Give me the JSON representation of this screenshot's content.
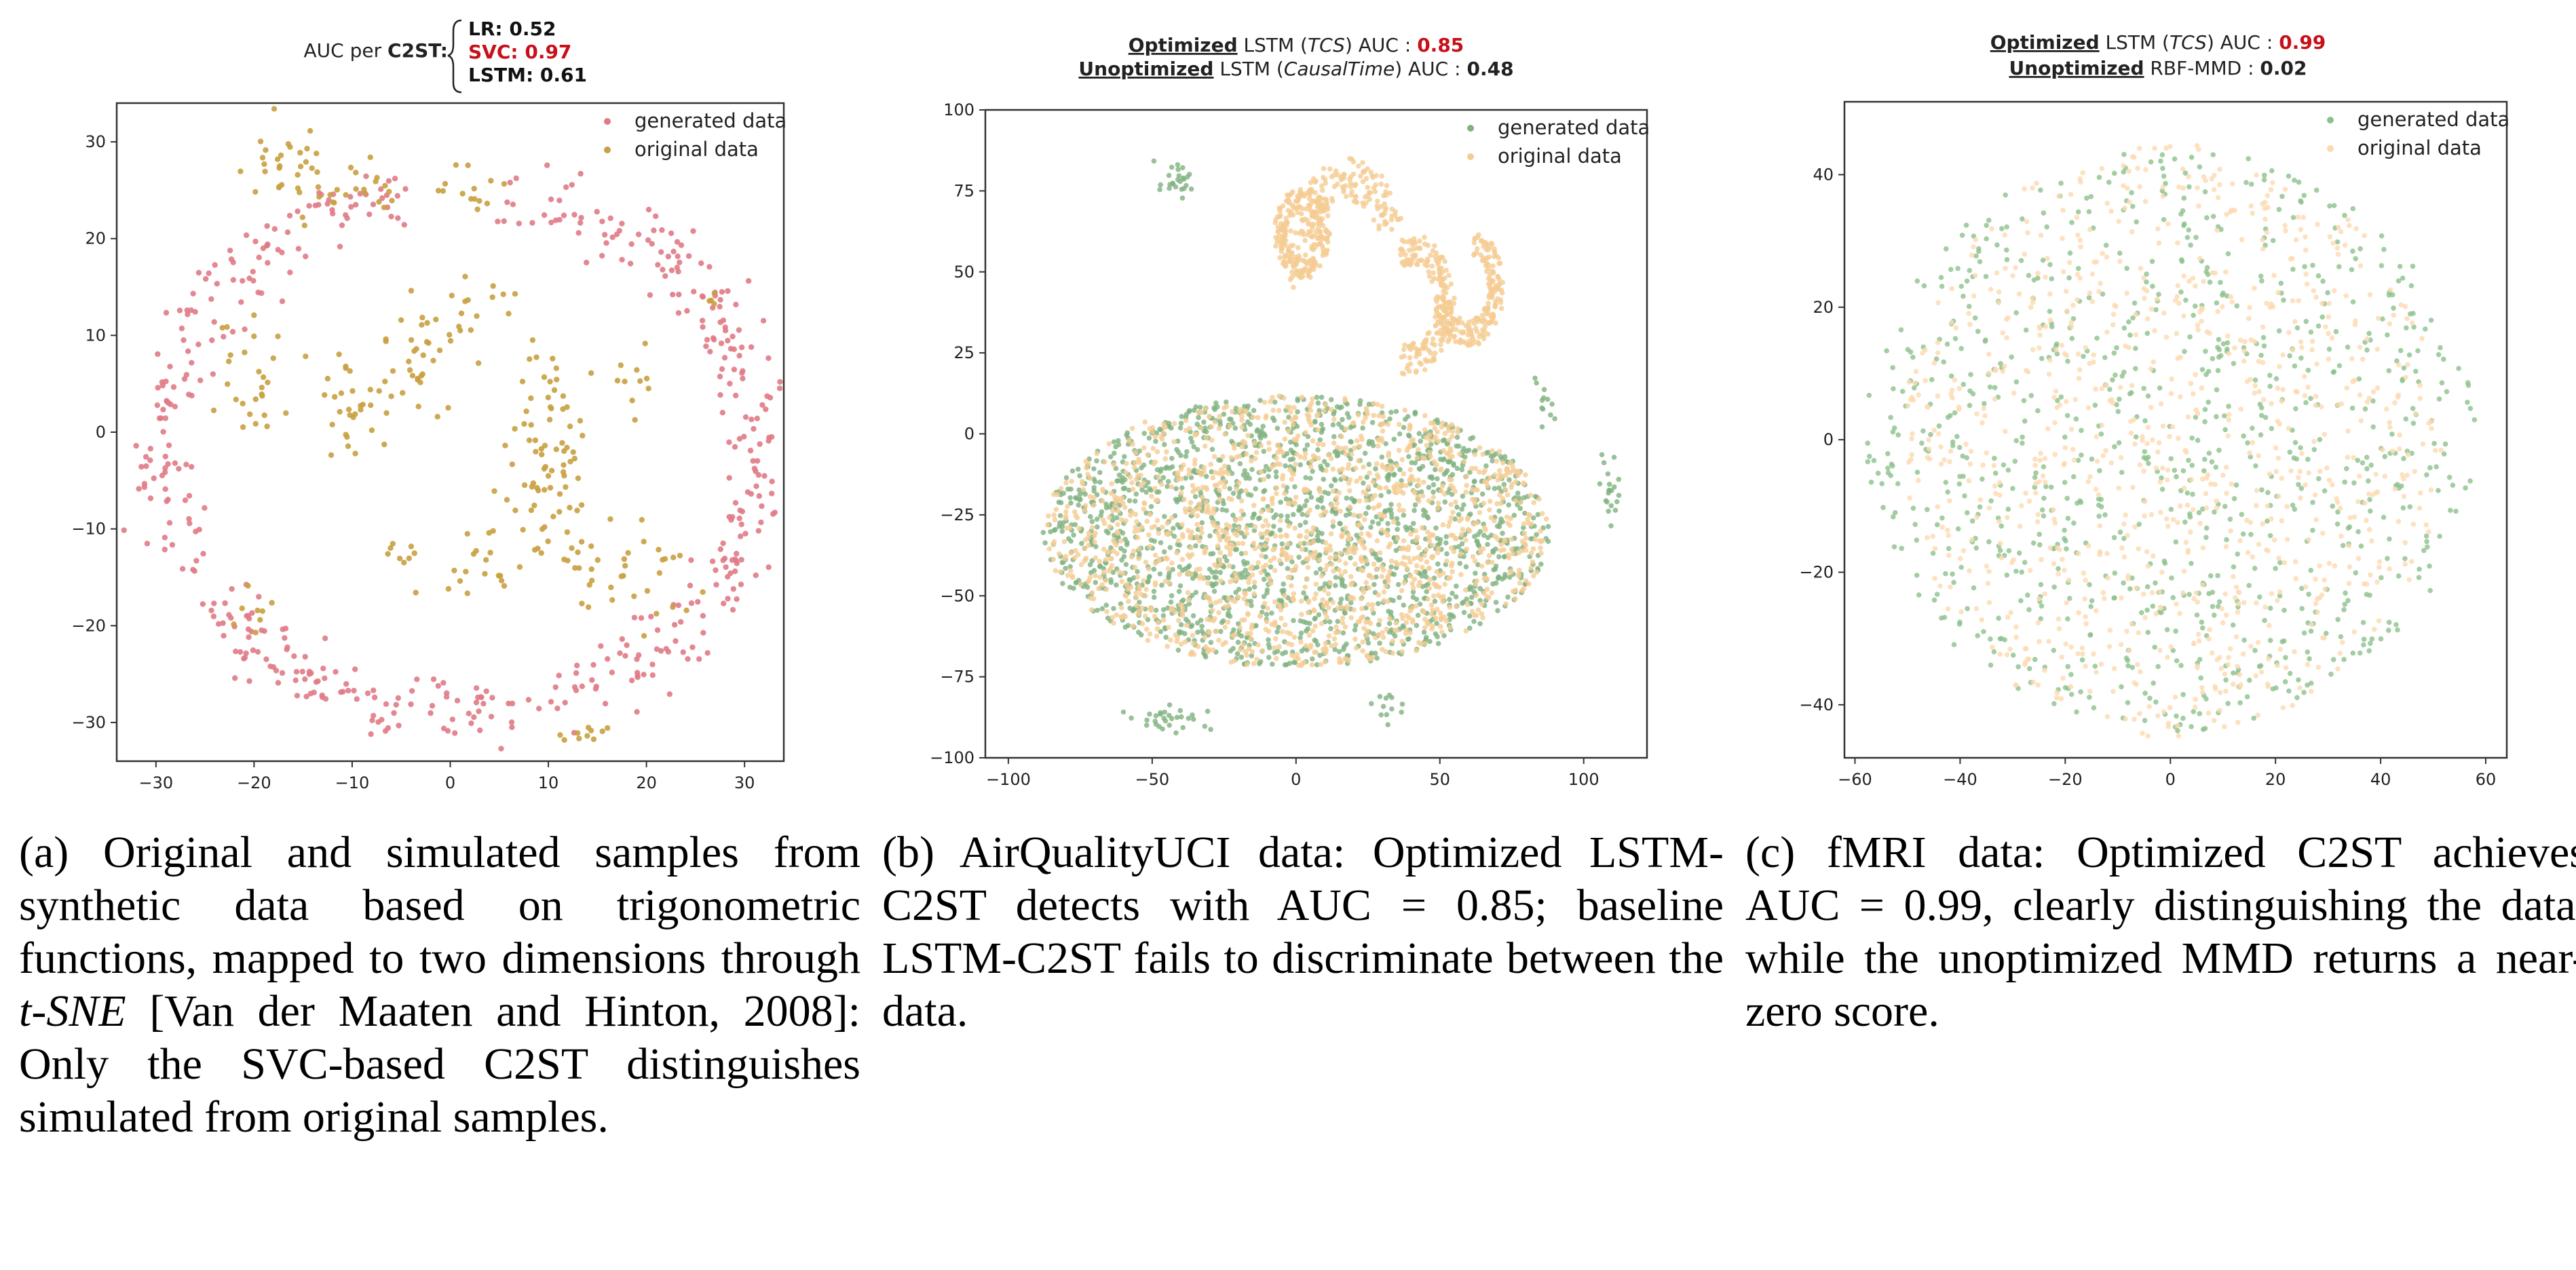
{
  "panels": [
    {
      "title_lines": [
        [
          {
            "text": "AUC per ",
            "style": "normal"
          },
          {
            "text": "C2ST:",
            "style": "bold"
          }
        ]
      ],
      "auc_list": [
        {
          "text": "LR: 0.52",
          "color": "#111111"
        },
        {
          "text": "SVC: 0.97",
          "color": "#c8101a"
        },
        {
          "text": "LSTM: 0.61",
          "color": "#111111"
        }
      ],
      "caption_parts": [
        {
          "text": "(a) Original and simulated samples from synthetic data based on trigonometric functions, mapped to two dimensions through ",
          "italic": false
        },
        {
          "text": "t-SNE",
          "italic": true
        },
        {
          "text": " [Van der Maaten and Hinton, 2008]: Only the SVC-based C2ST distinguishes simulated from original samples.",
          "italic": false
        }
      ]
    },
    {
      "title_lines": [
        [
          {
            "text": "Optimized",
            "style": "bold-underline"
          },
          {
            "text": " LSTM (",
            "style": "normal"
          },
          {
            "text": "TCS",
            "style": "italic"
          },
          {
            "text": ") AUC : ",
            "style": "normal"
          },
          {
            "text": "0.85",
            "style": "red"
          }
        ],
        [
          {
            "text": "Unoptimized",
            "style": "bold-underline"
          },
          {
            "text": " LSTM (",
            "style": "normal"
          },
          {
            "text": "CausalTime",
            "style": "italic"
          },
          {
            "text": ") AUC : ",
            "style": "normal"
          },
          {
            "text": "0.48",
            "style": "bold"
          }
        ]
      ],
      "caption_parts": [
        {
          "text": "(b) AirQualityUCI data: Optimized LSTM-C2ST detects with AUC = 0.85; baseline LSTM-C2ST fails to discriminate between the data.",
          "italic": false
        }
      ]
    },
    {
      "title_lines": [
        [
          {
            "text": "Optimized",
            "style": "bold-underline"
          },
          {
            "text": " LSTM (",
            "style": "normal"
          },
          {
            "text": "TCS",
            "style": "italic"
          },
          {
            "text": ") AUC : ",
            "style": "normal"
          },
          {
            "text": "0.99",
            "style": "red"
          }
        ],
        [
          {
            "text": "Unoptimized",
            "style": "bold-underline"
          },
          {
            "text": " RBF-MMD : ",
            "style": "normal"
          },
          {
            "text": "0.02",
            "style": "bold"
          }
        ]
      ],
      "caption_parts": [
        {
          "text": "(c) fMRI data: Optimized C2ST achieves AUC = 0.99, clearly distinguishing the data, while the unoptimized MMD returns a near-zero score.",
          "italic": false
        }
      ]
    }
  ],
  "chart_data": [
    {
      "type": "scatter",
      "xlim": [
        -34,
        34
      ],
      "ylim": [
        -34,
        34
      ],
      "xticks": [
        -30,
        -20,
        -10,
        0,
        10,
        20,
        30
      ],
      "yticks": [
        -30,
        -20,
        -10,
        0,
        10,
        20,
        30
      ],
      "legend_position": "top-right",
      "series": [
        {
          "name": "generated data",
          "color": "#e07b86",
          "distribution": "ring",
          "params": {
            "cx": 1,
            "cy": -2,
            "rx": 30.5,
            "ry": 27,
            "gap_start_deg": 100,
            "gap_end_deg": 82,
            "thickness": 1.8
          },
          "n": 520
        },
        {
          "name": "original data",
          "color": "#c9a040",
          "distribution": "clusters",
          "params": {
            "clusters": [
              {
                "x": -17,
                "y": 27,
                "sx": 2.5,
                "sy": 2.5,
                "n": 30
              },
              {
                "x": -10,
                "y": 25,
                "sx": 2.5,
                "sy": 1.5,
                "n": 20
              },
              {
                "x": 2,
                "y": 25,
                "sx": 1.5,
                "sy": 1.5,
                "n": 14
              },
              {
                "x": -20,
                "y": 5,
                "sx": 2.5,
                "sy": 4,
                "n": 26
              },
              {
                "x": -8,
                "y": 3,
                "sx": 3,
                "sy": 3,
                "n": 36
              },
              {
                "x": -3,
                "y": 8,
                "sx": 2,
                "sy": 3,
                "n": 24
              },
              {
                "x": 2,
                "y": 12,
                "sx": 2.5,
                "sy": 2,
                "n": 18
              },
              {
                "x": 11,
                "y": 1,
                "sx": 2,
                "sy": 5,
                "n": 46
              },
              {
                "x": 9,
                "y": -8,
                "sx": 2.5,
                "sy": 4,
                "n": 36
              },
              {
                "x": 3,
                "y": -13,
                "sx": 2,
                "sy": 2,
                "n": 14
              },
              {
                "x": -4,
                "y": -14,
                "sx": 1.5,
                "sy": 1.5,
                "n": 10
              },
              {
                "x": 15,
                "y": -14,
                "sx": 2,
                "sy": 2,
                "n": 16
              },
              {
                "x": 21,
                "y": -15,
                "sx": 2.5,
                "sy": 3,
                "n": 18
              },
              {
                "x": -20,
                "y": -18,
                "sx": 2,
                "sy": 1.5,
                "n": 8
              },
              {
                "x": 13,
                "y": -31,
                "sx": 2,
                "sy": 0.5,
                "n": 10
              },
              {
                "x": 26,
                "y": 14,
                "sx": 1,
                "sy": 1,
                "n": 4
              },
              {
                "x": 20,
                "y": 5,
                "sx": 2,
                "sy": 2,
                "n": 10
              }
            ]
          },
          "n": 360
        }
      ]
    },
    {
      "type": "scatter",
      "xlim": [
        -108,
        122
      ],
      "ylim": [
        -100,
        100
      ],
      "xticks": [
        -100,
        -50,
        0,
        50,
        100
      ],
      "yticks": [
        -100,
        -75,
        -50,
        -25,
        0,
        25,
        50,
        75,
        100
      ],
      "legend_position": "top-right",
      "series": [
        {
          "name": "generated data",
          "color": "#7fb27f",
          "distribution": "blob",
          "params": {
            "cx": 0,
            "cy": -30,
            "rx": 88,
            "ry": 42
          },
          "n": 1600
        },
        {
          "name": "original data",
          "color": "#f5cc92",
          "distribution": "blob+arcs",
          "params": {
            "cx": 0,
            "cy": -30,
            "rx": 88,
            "ry": 42,
            "arcs": [
              {
                "cx": 18,
                "cy": 55,
                "r": 30,
                "start": 20,
                "end": 200
              },
              {
                "cx": 40,
                "cy": 40,
                "r": 22,
                "start": 250,
                "end": 470
              },
              {
                "cx": 60,
                "cy": 45,
                "r": 18,
                "start": 200,
                "end": 440
              },
              {
                "cx": 2,
                "cy": 62,
                "r": 14,
                "start": 0,
                "end": 360
              }
            ]
          },
          "n": 2200
        }
      ]
    },
    {
      "type": "scatter",
      "xlim": [
        -62,
        64
      ],
      "ylim": [
        -48,
        51
      ],
      "xticks": [
        -60,
        -40,
        -20,
        0,
        20,
        40,
        60
      ],
      "yticks": [
        -40,
        -20,
        0,
        20,
        40
      ],
      "legend_position": "top-right",
      "series": [
        {
          "name": "generated data",
          "color": "#8cc08c",
          "distribution": "disk",
          "params": {
            "cx": 0,
            "cy": 0,
            "rx": 58,
            "ry": 44
          },
          "n": 900
        },
        {
          "name": "original data",
          "color": "#fcd9b0",
          "distribution": "disk",
          "params": {
            "cx": 0,
            "cy": 0,
            "rx": 52,
            "ry": 45
          },
          "n": 900
        }
      ]
    }
  ]
}
